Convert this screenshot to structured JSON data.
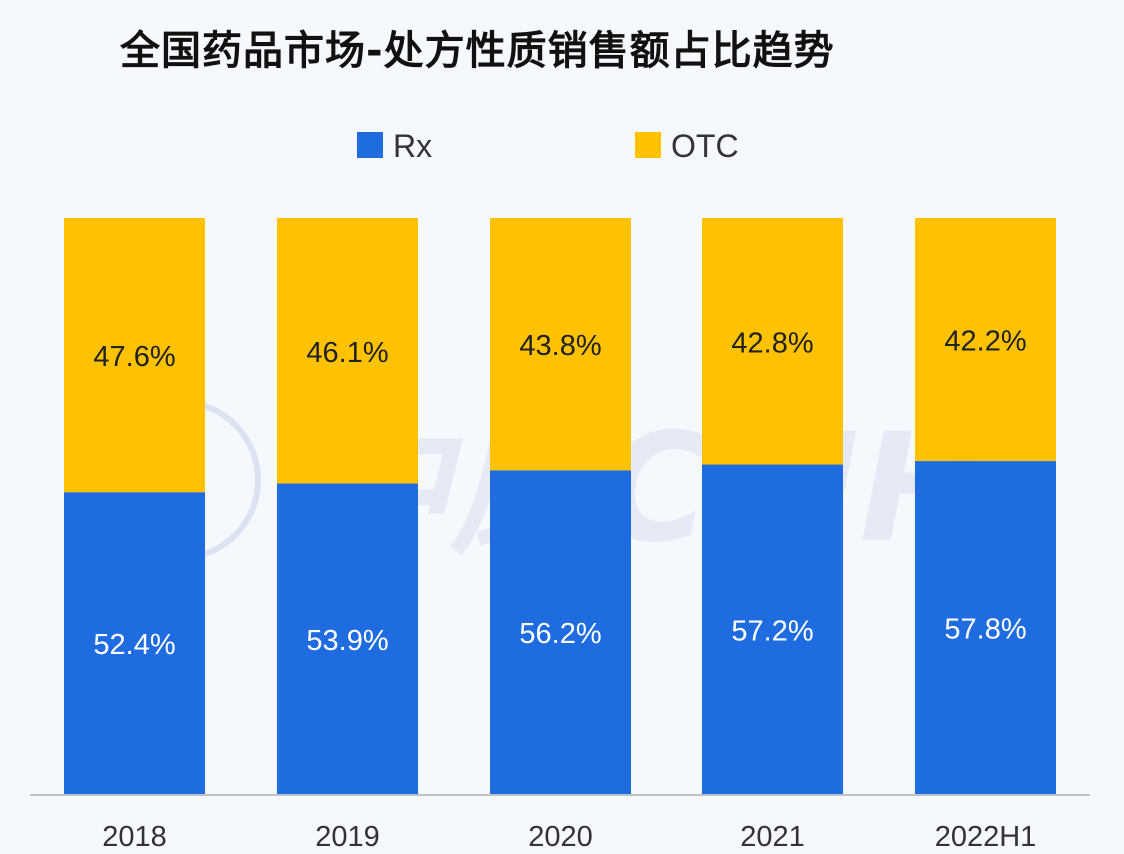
{
  "chart_data": {
    "type": "bar",
    "stacked": true,
    "percent_stacked": true,
    "title": "全国药品市场-处方性质销售额占比趋势",
    "categories": [
      "2018",
      "2019",
      "2020",
      "2021",
      "2022H1"
    ],
    "series": [
      {
        "name": "Rx",
        "color": "#1f6ce0",
        "values": [
          52.4,
          53.9,
          56.2,
          57.2,
          57.8
        ],
        "labels": [
          "52.4%",
          "53.9%",
          "56.2%",
          "57.2%",
          "57.8%"
        ]
      },
      {
        "name": "OTC",
        "color": "#fec200",
        "values": [
          47.6,
          46.1,
          43.8,
          42.8,
          42.2
        ],
        "labels": [
          "47.6%",
          "46.1%",
          "43.8%",
          "42.8%",
          "42.2%"
        ]
      }
    ],
    "ylim": [
      0,
      100
    ],
    "grid": false,
    "legend": "top"
  },
  "watermark": "中康CMH"
}
